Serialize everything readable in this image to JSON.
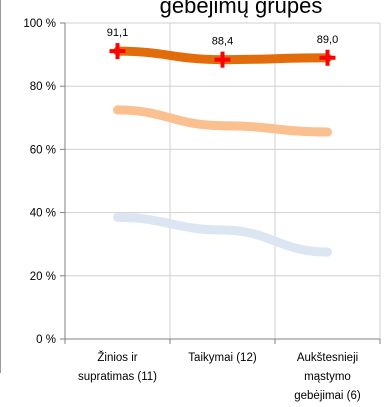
{
  "chart_data": {
    "type": "line",
    "title": "gebėjimų grupes",
    "categories": [
      [
        "Žinios ir",
        "supratimas (11)"
      ],
      [
        "Taikymai (12)"
      ],
      [
        "Aukštesnieji",
        "mąstymo",
        "gebėjimai (6)"
      ]
    ],
    "y_ticks": [
      "0 %",
      "20 %",
      "40 %",
      "60 %",
      "80 %",
      "100 %"
    ],
    "ylim": [
      0,
      100
    ],
    "grid": true,
    "series": [
      {
        "values": [
          91.1,
          88.4,
          89.0
        ],
        "labels": [
          "91,1",
          "88,4",
          "89,0"
        ],
        "color": "#E36C0A",
        "marker": "plus",
        "marker_color": "#FF0000"
      },
      {
        "values": [
          72.5,
          67.5,
          65.5
        ],
        "color": "#FAC090"
      },
      {
        "values": [
          38.5,
          34.5,
          27.5
        ],
        "color": "#DCE6F2"
      }
    ]
  }
}
